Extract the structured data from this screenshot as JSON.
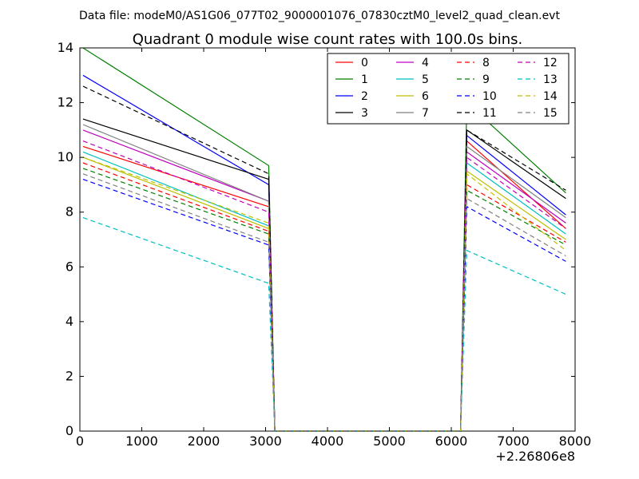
{
  "chart_data": {
    "type": "line",
    "suptitle": "Data file: modeM0/AS1G06_077T02_9000001076_07830cztM0_level2_quad_clean.evt",
    "title": "Quadrant 0 module wise count rates with 100.0s bins.",
    "xlabel": "",
    "ylabel": "",
    "x_offset_label": "+2.26806e8",
    "xlim": [
      0,
      8000
    ],
    "ylim": [
      0,
      14
    ],
    "xticks": [
      0,
      1000,
      2000,
      3000,
      4000,
      5000,
      6000,
      7000,
      8000
    ],
    "yticks": [
      0,
      2,
      4,
      6,
      8,
      10,
      12,
      14
    ],
    "grid": false,
    "legend_position": "top-right",
    "x": [
      50,
      3050,
      3150,
      3250,
      6150,
      6250,
      7850
    ],
    "series": [
      {
        "name": "0",
        "color": "#ff0000",
        "dash": "solid",
        "values": [
          10.4,
          8.2,
          0,
          0,
          0,
          10.6,
          7.4
        ]
      },
      {
        "name": "1",
        "color": "#008000",
        "dash": "solid",
        "values": [
          14.0,
          9.7,
          0,
          0,
          0,
          12.0,
          8.7
        ]
      },
      {
        "name": "2",
        "color": "#0000ff",
        "dash": "solid",
        "values": [
          13.0,
          9.0,
          0,
          0,
          0,
          10.8,
          7.9
        ]
      },
      {
        "name": "3",
        "color": "#000000",
        "dash": "solid",
        "values": [
          11.4,
          9.2,
          0,
          0,
          0,
          11.0,
          8.5
        ]
      },
      {
        "name": "4",
        "color": "#bf00bf",
        "dash": "solid",
        "values": [
          11.0,
          8.4,
          0,
          0,
          0,
          10.2,
          7.6
        ]
      },
      {
        "name": "5",
        "color": "#00bfbf",
        "dash": "solid",
        "values": [
          10.2,
          7.5,
          0,
          0,
          0,
          9.8,
          7.2
        ]
      },
      {
        "name": "6",
        "color": "#bfbf00",
        "dash": "solid",
        "values": [
          10.0,
          7.4,
          0,
          0,
          0,
          9.5,
          7.0
        ]
      },
      {
        "name": "7",
        "color": "#808080",
        "dash": "solid",
        "values": [
          11.2,
          8.4,
          0,
          0,
          0,
          10.4,
          7.8
        ]
      },
      {
        "name": "8",
        "color": "#ff0000",
        "dash": "dashed",
        "values": [
          9.8,
          7.3,
          0,
          0,
          0,
          9.0,
          6.9
        ]
      },
      {
        "name": "9",
        "color": "#008000",
        "dash": "dashed",
        "values": [
          9.6,
          7.2,
          0,
          0,
          0,
          8.8,
          6.8
        ]
      },
      {
        "name": "10",
        "color": "#0000ff",
        "dash": "dashed",
        "values": [
          9.2,
          6.8,
          0,
          0,
          0,
          8.2,
          6.2
        ]
      },
      {
        "name": "11",
        "color": "#000000",
        "dash": "dashed",
        "values": [
          12.6,
          9.4,
          0,
          0,
          0,
          11.0,
          8.8
        ]
      },
      {
        "name": "12",
        "color": "#bf00bf",
        "dash": "dashed",
        "values": [
          10.6,
          8.0,
          0,
          0,
          0,
          10.0,
          7.4
        ]
      },
      {
        "name": "13",
        "color": "#00bfbf",
        "dash": "dashed",
        "values": [
          7.8,
          5.4,
          0,
          0,
          0,
          6.6,
          5.0
        ]
      },
      {
        "name": "14",
        "color": "#bfbf00",
        "dash": "dashed",
        "values": [
          10.0,
          7.6,
          0,
          0,
          0,
          9.4,
          6.6
        ]
      },
      {
        "name": "15",
        "color": "#808080",
        "dash": "dashed",
        "values": [
          9.4,
          6.9,
          0,
          0,
          0,
          8.5,
          6.4
        ]
      }
    ]
  }
}
